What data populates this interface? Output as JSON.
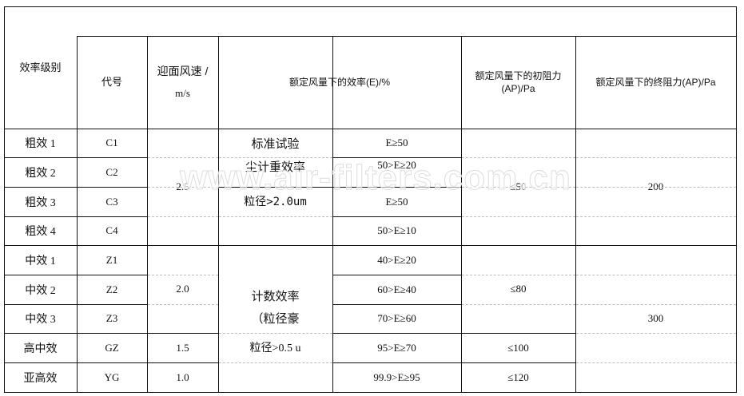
{
  "header": {
    "grade": "效率级别",
    "code": "代号",
    "speed_line1": "迎面风速 /",
    "speed_line2": "m/s",
    "efficiency": "额定风量下的效率(E)/%",
    "initial_resistance_line1": "额定风量下的初阻力",
    "initial_resistance_line2": "(AP)/Pa",
    "final_resistance": "额定风量下的终阻力(AP)/Pa"
  },
  "rows": [
    {
      "grade": "粗效 1",
      "code": "C1",
      "efficiency": "E≥50"
    },
    {
      "grade": "粗效 2",
      "code": "C2",
      "efficiency": "50>E≥20"
    },
    {
      "grade": "粗效 3",
      "code": "C3",
      "efficiency": "E≥50"
    },
    {
      "grade": "粗效 4",
      "code": "C4",
      "efficiency": "50>E≥10"
    },
    {
      "grade": "中效 1",
      "code": "Z1",
      "efficiency": "40>E≥20"
    },
    {
      "grade": "中效 2",
      "code": "Z2",
      "efficiency": "60>E≥40"
    },
    {
      "grade": "中效 3",
      "code": "Z3",
      "efficiency": "70>E≥60"
    },
    {
      "grade": "高中效",
      "code": "GZ",
      "efficiency": "95>E≥70"
    },
    {
      "grade": "亚高效",
      "code": "YG",
      "efficiency": "99.9>E≥95"
    }
  ],
  "speeds": {
    "coarse": "2.5",
    "medium": "2.0",
    "high_medium": "1.5",
    "sub_high": "1.0"
  },
  "method": {
    "gravimetric_line1": "标准试验",
    "gravimetric_line2": "尘计重效率",
    "gravimetric_line3": "粒径>2.0um",
    "count_line1": "计数效率",
    "count_line2": "（粒径豪",
    "count_line3": "粒径>0.5 u"
  },
  "initial_resistance": {
    "coarse": "≤50",
    "medium": "≤80",
    "high_medium": "≤100",
    "sub_high": "≤120"
  },
  "final_resistance": {
    "coarse": "200",
    "medium": "300"
  },
  "watermark": "www.air-filters.com.cn"
}
